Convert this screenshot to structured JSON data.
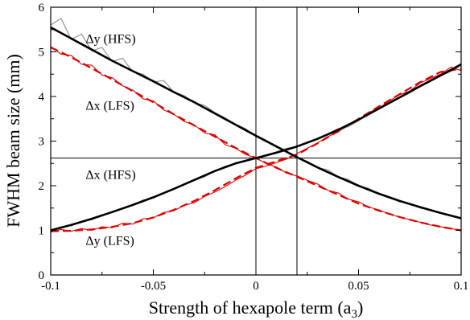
{
  "chart_data": {
    "type": "line",
    "title": "",
    "xlabel": "Strength of hexapole term (a",
    "xlabel_sub": "3",
    "xlabel_tail": ")",
    "ylabel": "FWHM beam size (mm)",
    "xlim": [
      -0.1,
      0.1
    ],
    "ylim": [
      0,
      6
    ],
    "xticks": [
      -0.1,
      -0.05,
      0,
      0.05,
      0.1
    ],
    "xtick_labels": [
      "-0.1",
      "-0.05",
      "0",
      "0.05",
      "0.1"
    ],
    "yticks": [
      0,
      1,
      2,
      3,
      4,
      5,
      6
    ],
    "ytick_labels": [
      "0",
      "1",
      "2",
      "3",
      "4",
      "5",
      "6"
    ],
    "grid": false,
    "reference_lines": {
      "vertical": [
        0.0,
        0.02
      ],
      "horizontal": [
        2.62
      ]
    },
    "colors": {
      "hfs_smooth": "#000000",
      "hfs_raw": "#8c8c8c",
      "lfs": "#e00000"
    },
    "annotations": [
      {
        "text": "Δy (HFS)",
        "x": -0.083,
        "y": 5.2
      },
      {
        "text": "Δx (LFS)",
        "x": -0.083,
        "y": 3.7
      },
      {
        "text": "Δx (HFS)",
        "x": -0.083,
        "y": 2.15
      },
      {
        "text": "Δy (LFS)",
        "x": -0.083,
        "y": 0.68
      }
    ],
    "series": [
      {
        "style": "solid-thick",
        "color": "#000000",
        "x": [
          -0.1,
          -0.09,
          -0.08,
          -0.07,
          -0.06,
          -0.05,
          -0.04,
          -0.03,
          -0.02,
          -0.01,
          0.0,
          0.01,
          0.02,
          0.03,
          0.04,
          0.05,
          0.06,
          0.07,
          0.08,
          0.09,
          0.1
        ],
        "y": [
          5.55,
          5.3,
          5.05,
          4.8,
          4.57,
          4.34,
          4.1,
          3.87,
          3.62,
          3.37,
          3.12,
          2.88,
          2.64,
          2.41,
          2.2,
          2.0,
          1.82,
          1.66,
          1.52,
          1.39,
          1.27
        ]
      },
      {
        "style": "solid-thick",
        "color": "#000000",
        "x": [
          -0.1,
          -0.09,
          -0.08,
          -0.07,
          -0.06,
          -0.05,
          -0.04,
          -0.03,
          -0.02,
          -0.01,
          0.0,
          0.01,
          0.02,
          0.03,
          0.04,
          0.05,
          0.06,
          0.07,
          0.08,
          0.09,
          0.1
        ],
        "y": [
          1.0,
          1.12,
          1.26,
          1.41,
          1.57,
          1.74,
          1.93,
          2.13,
          2.33,
          2.5,
          2.62,
          2.74,
          2.88,
          3.05,
          3.25,
          3.48,
          3.73,
          3.98,
          4.23,
          4.47,
          4.72
        ]
      },
      {
        "style": "dashed-thick",
        "color": "#e00000",
        "x": [
          -0.1,
          -0.09,
          -0.08,
          -0.07,
          -0.06,
          -0.05,
          -0.04,
          -0.03,
          -0.02,
          -0.01,
          0.0,
          0.01,
          0.02,
          0.03,
          0.04,
          0.05,
          0.06,
          0.07,
          0.08,
          0.09,
          0.1
        ],
        "y": [
          5.1,
          4.88,
          4.63,
          4.38,
          4.12,
          3.87,
          3.6,
          3.35,
          3.1,
          2.85,
          2.62,
          2.4,
          2.2,
          2.0,
          1.8,
          1.6,
          1.44,
          1.3,
          1.18,
          1.08,
          1.0
        ]
      },
      {
        "style": "dashed-thick",
        "color": "#e00000",
        "x": [
          -0.1,
          -0.09,
          -0.08,
          -0.07,
          -0.06,
          -0.05,
          -0.04,
          -0.03,
          -0.02,
          -0.01,
          0.0,
          0.01,
          0.02,
          0.03,
          0.04,
          0.05,
          0.06,
          0.07,
          0.08,
          0.09,
          0.1
        ],
        "y": [
          0.98,
          0.99,
          1.02,
          1.08,
          1.16,
          1.29,
          1.46,
          1.66,
          1.9,
          2.16,
          2.4,
          2.55,
          2.7,
          2.95,
          3.22,
          3.5,
          3.78,
          4.05,
          4.32,
          4.55,
          4.62
        ]
      },
      {
        "style": "solid-thin",
        "color": "#8c8c8c",
        "x": [
          -0.1,
          -0.095,
          -0.09,
          -0.085,
          -0.08,
          -0.075,
          -0.07,
          -0.065,
          -0.06,
          -0.055,
          -0.05,
          -0.045,
          -0.04,
          -0.035,
          -0.03,
          -0.025,
          -0.02,
          -0.015,
          -0.01,
          -0.005,
          0.0,
          0.005,
          0.01,
          0.015,
          0.02,
          0.025,
          0.03,
          0.035,
          0.04,
          0.045,
          0.05,
          0.055,
          0.06,
          0.065,
          0.07,
          0.075,
          0.08,
          0.085,
          0.09,
          0.095,
          0.1
        ],
        "y": [
          5.6,
          5.75,
          5.28,
          5.4,
          5.02,
          5.1,
          4.78,
          4.86,
          4.55,
          4.5,
          4.32,
          4.36,
          4.1,
          4.02,
          3.86,
          3.8,
          3.64,
          3.52,
          3.38,
          3.28,
          3.1,
          3.02,
          2.86,
          2.78,
          2.62,
          2.55,
          2.4,
          2.36,
          2.2,
          2.14,
          2.0,
          1.94,
          1.82,
          1.75,
          1.64,
          1.6,
          1.5,
          1.46,
          1.38,
          1.33,
          1.27
        ]
      },
      {
        "style": "solid-thin",
        "color": "#8c8c8c",
        "x": [
          -0.1,
          -0.095,
          -0.09,
          -0.085,
          -0.08,
          -0.075,
          -0.07,
          -0.065,
          -0.06,
          -0.055,
          -0.05,
          -0.045,
          -0.04,
          -0.035,
          -0.03,
          -0.025,
          -0.02,
          -0.015,
          -0.01,
          -0.005,
          0.0,
          0.005,
          0.01,
          0.015,
          0.02,
          0.025,
          0.03,
          0.035,
          0.04,
          0.045,
          0.05,
          0.055,
          0.06,
          0.065,
          0.07,
          0.075,
          0.08,
          0.085,
          0.09,
          0.095,
          0.1
        ],
        "y": [
          1.0,
          1.08,
          1.1,
          1.2,
          1.24,
          1.34,
          1.4,
          1.48,
          1.56,
          1.68,
          1.72,
          1.84,
          1.92,
          2.04,
          2.12,
          2.2,
          2.33,
          2.44,
          2.5,
          2.56,
          2.62,
          2.68,
          2.76,
          2.84,
          2.88,
          2.98,
          3.04,
          3.16,
          3.28,
          3.32,
          3.46,
          3.6,
          3.72,
          3.84,
          3.96,
          4.08,
          4.22,
          4.34,
          4.46,
          4.56,
          4.7
        ]
      },
      {
        "style": "solid-thin",
        "color": "#e00000",
        "x": [
          -0.1,
          -0.095,
          -0.09,
          -0.085,
          -0.08,
          -0.075,
          -0.07,
          -0.065,
          -0.06,
          -0.055,
          -0.05,
          -0.045,
          -0.04,
          -0.035,
          -0.03,
          -0.025,
          -0.02,
          -0.015,
          -0.01,
          -0.005,
          0.0,
          0.005,
          0.01,
          0.015,
          0.02,
          0.025,
          0.03,
          0.035,
          0.04,
          0.045,
          0.05,
          0.055,
          0.06,
          0.065,
          0.07,
          0.075,
          0.08,
          0.085,
          0.09,
          0.095,
          0.1
        ],
        "y": [
          5.12,
          4.95,
          4.92,
          4.72,
          4.7,
          4.48,
          4.42,
          4.24,
          4.14,
          3.95,
          3.9,
          3.7,
          3.6,
          3.44,
          3.36,
          3.18,
          3.14,
          2.92,
          2.84,
          2.7,
          2.62,
          2.5,
          2.42,
          2.28,
          2.22,
          2.12,
          2.04,
          1.9,
          1.84,
          1.7,
          1.64,
          1.52,
          1.46,
          1.36,
          1.3,
          1.24,
          1.18,
          1.12,
          1.08,
          1.04,
          1.0
        ]
      },
      {
        "style": "solid-thin",
        "color": "#e00000",
        "x": [
          -0.1,
          -0.095,
          -0.09,
          -0.085,
          -0.08,
          -0.075,
          -0.07,
          -0.065,
          -0.06,
          -0.055,
          -0.05,
          -0.045,
          -0.04,
          -0.035,
          -0.03,
          -0.025,
          -0.02,
          -0.015,
          -0.01,
          -0.005,
          0.0,
          0.005,
          0.01,
          0.015,
          0.02,
          0.025,
          0.03,
          0.035,
          0.04,
          0.045,
          0.05,
          0.055,
          0.06,
          0.065,
          0.07,
          0.075,
          0.08,
          0.085,
          0.09,
          0.095,
          0.1
        ],
        "y": [
          0.96,
          1.02,
          0.98,
          1.04,
          1.0,
          1.08,
          1.06,
          1.16,
          1.14,
          1.26,
          1.28,
          1.4,
          1.44,
          1.56,
          1.62,
          1.76,
          1.86,
          1.98,
          2.12,
          2.24,
          2.38,
          2.44,
          2.52,
          2.6,
          2.72,
          2.84,
          2.96,
          3.1,
          3.2,
          3.38,
          3.46,
          3.64,
          3.74,
          3.9,
          4.04,
          4.12,
          4.3,
          4.4,
          4.5,
          4.66,
          4.58
        ]
      }
    ]
  }
}
